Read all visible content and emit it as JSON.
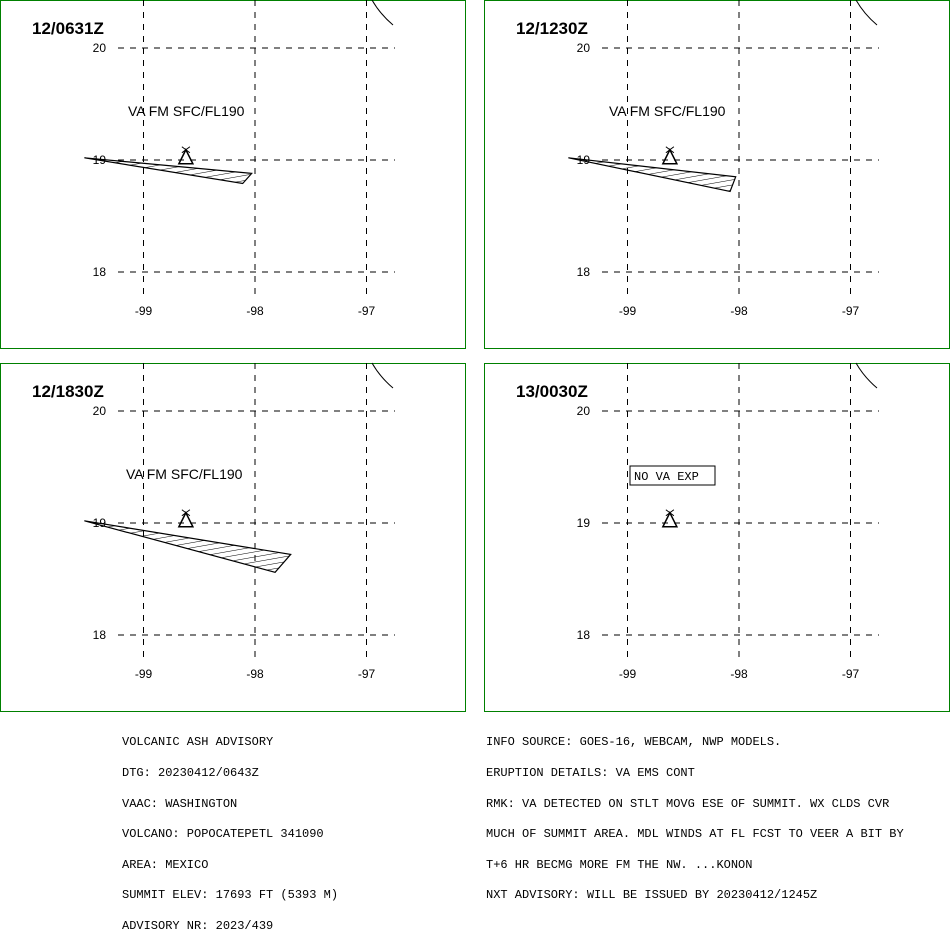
{
  "panels": [
    {
      "time": "12/0631Z",
      "lat_labels": [
        "20",
        "19",
        "18"
      ],
      "lon_labels": [
        "-99",
        "-98",
        "-97"
      ],
      "ash_label": "VA FM SFC/FL190",
      "ash_polygon": [
        [
          -99.53,
          19.02
        ],
        [
          -98.03,
          18.88
        ],
        [
          -98.11,
          18.79
        ],
        [
          -99.53,
          19.02
        ]
      ],
      "no_va_label": ""
    },
    {
      "time": "12/1230Z",
      "lat_labels": [
        "20",
        "19",
        "18"
      ],
      "lon_labels": [
        "-99",
        "-98",
        "-97"
      ],
      "ash_label": "VA FM SFC/FL190",
      "ash_polygon": [
        [
          -99.53,
          19.02
        ],
        [
          -98.03,
          18.85
        ],
        [
          -98.08,
          18.72
        ],
        [
          -99.53,
          19.02
        ]
      ],
      "no_va_label": ""
    },
    {
      "time": "12/1830Z",
      "lat_labels": [
        "20",
        "19",
        "18"
      ],
      "lon_labels": [
        "-99",
        "-98",
        "-97"
      ],
      "ash_label": "VA FM SFC/FL190",
      "ash_polygon": [
        [
          -99.53,
          19.02
        ],
        [
          -97.68,
          18.72
        ],
        [
          -97.82,
          18.56
        ],
        [
          -99.53,
          19.02
        ]
      ],
      "no_va_label": ""
    },
    {
      "time": "13/0030Z",
      "lat_labels": [
        "20",
        "19",
        "18"
      ],
      "lon_labels": [
        "-99",
        "-98",
        "-97"
      ],
      "ash_label": "",
      "ash_polygon": [],
      "no_va_label": "NO VA EXP"
    }
  ],
  "volcano": {
    "name": "POPOCATEPETL",
    "lon": -98.62,
    "lat": 19.02
  },
  "colors": {
    "panel_border": "#008000",
    "ink": "#000000"
  },
  "advisory_left": [
    "VOLCANIC ASH ADVISORY",
    "DTG: 20230412/0643Z",
    "VAAC: WASHINGTON",
    "VOLCANO: POPOCATEPETL 341090",
    "AREA: MEXICO",
    "SUMMIT ELEV: 17693 FT (5393 M)",
    "ADVISORY NR: 2023/439"
  ],
  "advisory_right": [
    "INFO SOURCE: GOES-16, WEBCAM, NWP MODELS.",
    "ERUPTION DETAILS: VA EMS CONT",
    "RMK: VA DETECTED ON STLT MOVG ESE OF SUMMIT. WX CLDS CVR",
    "MUCH OF SUMMIT AREA. MDL WINDS AT FL FCST TO VEER A BIT BY",
    "T+6 HR BECMG MORE FM THE NW. ...KONON",
    "NXT ADVISORY: WILL BE ISSUED BY 20230412/1245Z"
  ]
}
